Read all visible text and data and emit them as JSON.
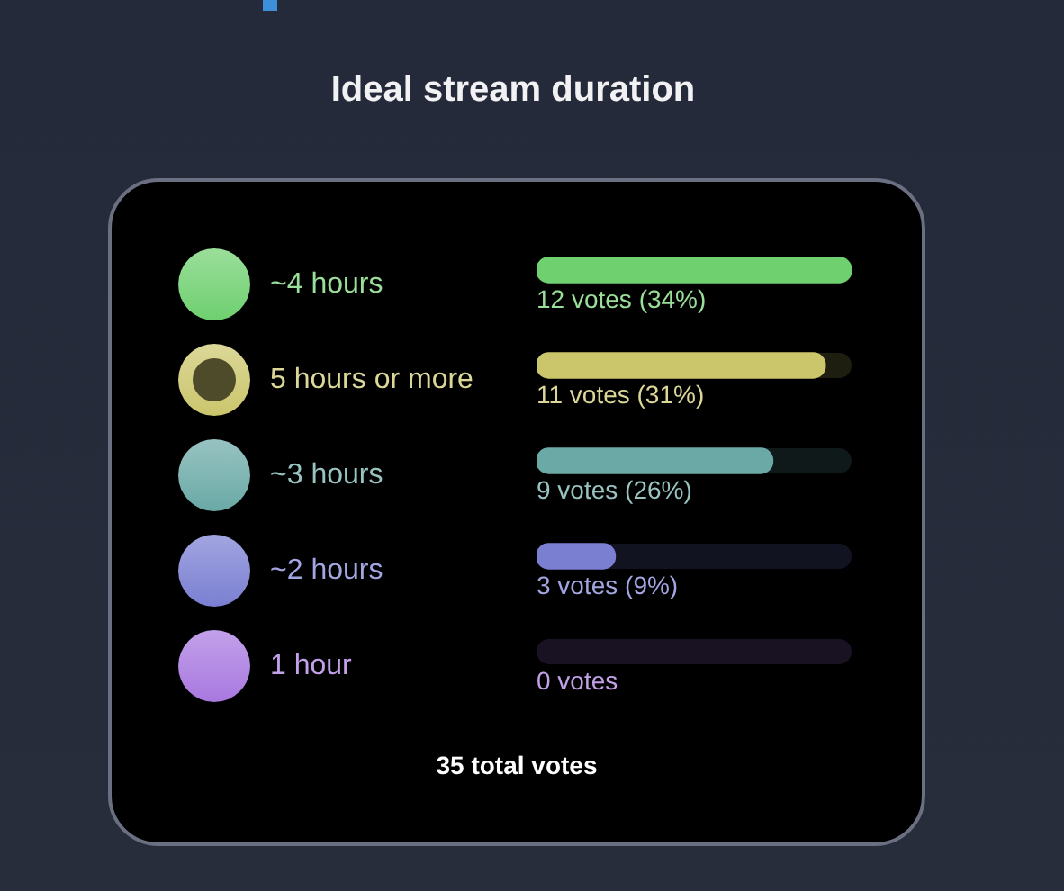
{
  "chart_data": {
    "type": "bar",
    "orientation": "horizontal",
    "title": "Ideal stream duration",
    "categories": [
      "~4 hours",
      "5 hours or more",
      "~3 hours",
      "~2 hours",
      "1 hour"
    ],
    "values": [
      12,
      11,
      9,
      3,
      0
    ],
    "colors": [
      "#6fd06f",
      "#cbc66c",
      "#6aa9a6",
      "#7a7fd2",
      "#a878e0"
    ],
    "value_labels": [
      "12 votes (34%)",
      "11 votes (31%)",
      "9 votes (26%)",
      "3 votes (9%)",
      "0 votes"
    ],
    "tick_labels": "y",
    "annotations": [
      "35 total votes"
    ]
  }
}
